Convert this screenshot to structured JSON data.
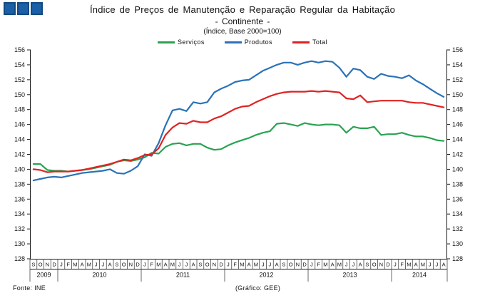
{
  "header": {
    "title": "Índice de Preços de Manutenção e Reparação Regular da Habitação",
    "subtitle": "- Continente -",
    "base_note": "(Índice, Base 2000=100)"
  },
  "footer": {
    "source": "Fonte: INE",
    "credit": "(Gráfico: GEE)"
  },
  "logo": {
    "name": "gee-three-squares",
    "square_color": "#1a5fa8",
    "square_border_color": "#134a7e"
  },
  "chart_data": {
    "type": "line",
    "title": "Índice de Preços de Manutenção e Reparação Regular da Habitação - Continente - (Índice, Base 2000=100)",
    "xlabel": "",
    "ylabel": "",
    "ylim": [
      128,
      156
    ],
    "y_ticks": [
      156,
      154,
      152,
      150,
      148,
      146,
      144,
      142,
      140,
      138,
      136,
      134,
      132,
      130,
      128
    ],
    "grid": false,
    "legend_position": "top",
    "axis_color": "#1a1a1a",
    "x_month_labels": [
      "S",
      "O",
      "N",
      "D",
      "J",
      "F",
      "M",
      "A",
      "M",
      "J",
      "J",
      "A",
      "S",
      "O",
      "N",
      "D",
      "J",
      "F",
      "M",
      "A",
      "M",
      "J",
      "J",
      "A",
      "S",
      "O",
      "N",
      "D",
      "J",
      "F",
      "M",
      "A",
      "M",
      "J",
      "J",
      "A",
      "S",
      "O",
      "N",
      "D",
      "J",
      "F",
      "M",
      "A",
      "M",
      "J",
      "J",
      "A",
      "S",
      "O",
      "N",
      "D",
      "J",
      "F",
      "M",
      "A",
      "M",
      "J",
      "J",
      "A"
    ],
    "years": [
      {
        "label": "2009",
        "months": 4
      },
      {
        "label": "2010",
        "months": 12
      },
      {
        "label": "2011",
        "months": 12
      },
      {
        "label": "2012",
        "months": 12
      },
      {
        "label": "2013",
        "months": 12
      },
      {
        "label": "2014",
        "months": 8
      }
    ],
    "series": [
      {
        "name": "Serviços",
        "color": "#29a352",
        "values": [
          140.7,
          140.7,
          139.9,
          139.8,
          139.8,
          139.7,
          139.8,
          139.9,
          140.0,
          140.2,
          140.4,
          140.6,
          141.0,
          141.2,
          141.1,
          141.3,
          141.6,
          142.2,
          142.1,
          143.0,
          143.4,
          143.5,
          143.2,
          143.4,
          143.4,
          142.9,
          142.6,
          142.7,
          143.2,
          143.6,
          143.9,
          144.2,
          144.6,
          144.9,
          145.1,
          146.1,
          146.2,
          146.0,
          145.8,
          146.2,
          146.0,
          145.9,
          146.0,
          146.0,
          145.9,
          144.9,
          145.7,
          145.5,
          145.5,
          145.7,
          144.6,
          144.7,
          144.7,
          144.9,
          144.6,
          144.4,
          144.4,
          144.2,
          143.9,
          143.8
        ]
      },
      {
        "name": "Produtos",
        "color": "#2a72b8",
        "values": [
          138.5,
          138.7,
          138.9,
          139.0,
          138.9,
          139.1,
          139.3,
          139.5,
          139.6,
          139.7,
          139.8,
          140.0,
          139.5,
          139.4,
          139.8,
          140.4,
          142.0,
          141.8,
          143.5,
          145.9,
          147.9,
          148.1,
          147.8,
          149.0,
          148.8,
          149.0,
          150.3,
          150.8,
          151.2,
          151.7,
          151.9,
          152.0,
          152.6,
          153.2,
          153.6,
          154.0,
          154.3,
          154.3,
          154.0,
          154.3,
          154.5,
          154.3,
          154.5,
          154.4,
          153.6,
          152.4,
          153.5,
          153.3,
          152.4,
          152.1,
          152.8,
          152.5,
          152.4,
          152.2,
          152.6,
          151.9,
          151.4,
          150.8,
          150.2,
          149.7
        ]
      },
      {
        "name": "Total",
        "color": "#e02222",
        "values": [
          140.0,
          139.9,
          139.6,
          139.7,
          139.7,
          139.7,
          139.8,
          139.9,
          140.1,
          140.3,
          140.5,
          140.7,
          141.0,
          141.3,
          141.2,
          141.5,
          141.9,
          142.0,
          142.8,
          144.6,
          145.6,
          146.2,
          146.1,
          146.5,
          146.3,
          146.3,
          146.8,
          147.1,
          147.6,
          148.1,
          148.4,
          148.5,
          149.0,
          149.4,
          149.8,
          150.1,
          150.3,
          150.4,
          150.4,
          150.4,
          150.5,
          150.4,
          150.5,
          150.4,
          150.3,
          149.5,
          149.4,
          149.9,
          149.0,
          149.1,
          149.2,
          149.2,
          149.2,
          149.2,
          149.0,
          148.9,
          148.9,
          148.7,
          148.5,
          148.3
        ]
      }
    ]
  }
}
